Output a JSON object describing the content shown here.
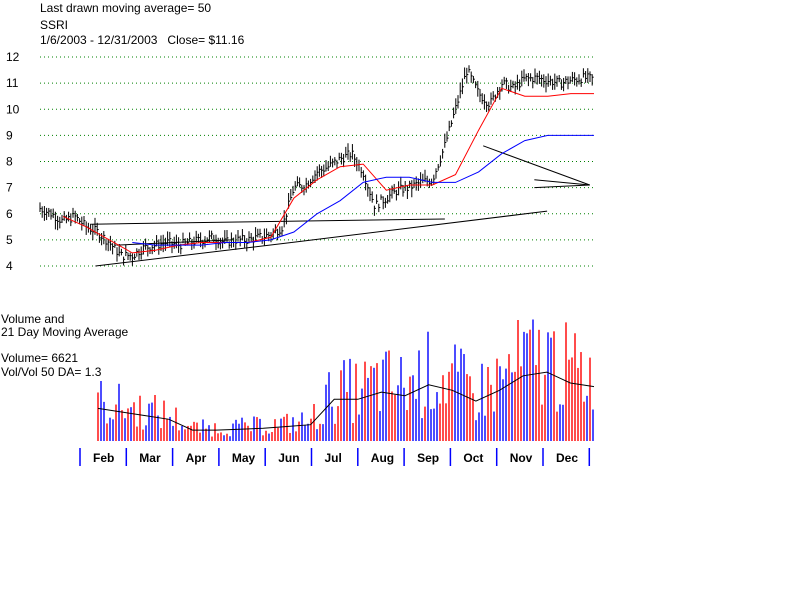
{
  "header": {
    "ma_line": "Last drawn moving average= 50",
    "symbol": "SSRI",
    "range_close": "1/6/2003 - 12/31/2003   Close= $11.16"
  },
  "volume_panel": {
    "title_line1": "Volume and",
    "title_line2": "21 Day Moving Average",
    "volume_line": "Volume= 6621",
    "ratio_line": "Vol/Vol 50 DA= 1.3"
  },
  "colors": {
    "price_bars": "#000000",
    "ma_short": "#ff0000",
    "ma_long": "#0000ff",
    "trendline": "#000000",
    "grid": "#008000",
    "volume_up": "#ff0000",
    "volume_down": "#0000ff",
    "volume_ma": "#000000"
  },
  "chart_data": {
    "type": "line",
    "ylim": [
      4,
      12
    ],
    "y_ticks": [
      "4",
      "5",
      "6",
      "7",
      "8",
      "9",
      "10",
      "11",
      "12"
    ],
    "months": [
      "Feb",
      "Mar",
      "Apr",
      "May",
      "Jun",
      "Jul",
      "Aug",
      "Sep",
      "Oct",
      "Nov",
      "Dec"
    ],
    "x_range": [
      0,
      12
    ],
    "grid": true,
    "series": [
      {
        "x": [
          0,
          0.25,
          0.5,
          0.75,
          1.0,
          1.25,
          1.5,
          1.75,
          2.0,
          2.25,
          2.5,
          2.75,
          3.0,
          3.25,
          3.5,
          3.75,
          4.0,
          4.25,
          4.5,
          4.75,
          5.0,
          5.25,
          5.5,
          5.75,
          6.0,
          6.25,
          6.5,
          6.75,
          7.0,
          7.25,
          7.5,
          7.75,
          8.0,
          8.25,
          8.5,
          8.75,
          9.0,
          9.25,
          9.5,
          9.75,
          10.0,
          10.25,
          10.5,
          10.75,
          11.0,
          11.25,
          11.5,
          11.75,
          12.0
        ],
        "values": [
          6.2,
          6.0,
          5.7,
          5.9,
          5.5,
          5.3,
          4.9,
          4.4,
          4.4,
          4.7,
          4.8,
          4.9,
          4.8,
          4.9,
          5.0,
          5.1,
          4.9,
          5.0,
          5.0,
          5.1,
          5.2,
          5.5,
          7.0,
          7.1,
          7.6,
          7.8,
          8.1,
          8.3,
          7.6,
          6.3,
          6.6,
          6.9,
          7.0,
          7.2,
          7.3,
          8.5,
          10.0,
          11.5,
          10.6,
          10.2,
          11.0,
          10.8,
          11.16,
          11.2,
          11.1,
          11.0,
          11.1,
          11.2,
          11.16
        ]
      },
      {
        "x": [
          0.5,
          1.0,
          1.5,
          2.0,
          2.5,
          3.0,
          3.5,
          4.0,
          4.5,
          5.0,
          5.5,
          6.0,
          6.5,
          7.0,
          7.5,
          8.0,
          8.5,
          9.0,
          9.5,
          10.0,
          10.5,
          11.0,
          11.5,
          12.0
        ],
        "values": [
          5.9,
          5.5,
          5.0,
          4.5,
          4.6,
          4.8,
          4.9,
          4.9,
          4.9,
          5.1,
          6.6,
          7.3,
          7.8,
          7.9,
          6.9,
          7.1,
          7.1,
          7.5,
          9.2,
          10.8,
          10.5,
          10.5,
          10.6,
          10.6
        ]
      },
      {
        "x": [
          2.0,
          2.5,
          3.0,
          3.5,
          4.0,
          4.5,
          5.0,
          5.5,
          6.0,
          6.5,
          7.0,
          7.5,
          8.0,
          8.5,
          9.0,
          9.5,
          10.0,
          10.5,
          11.0,
          11.5,
          12.0
        ],
        "values": [
          4.9,
          4.8,
          4.8,
          4.8,
          4.9,
          4.9,
          5.0,
          5.3,
          6.0,
          6.5,
          7.2,
          7.4,
          7.4,
          7.2,
          7.2,
          7.6,
          8.3,
          8.8,
          9.0,
          9.0,
          9.0
        ]
      }
    ],
    "volume": {
      "ma21": [
        1800,
        1600,
        1400,
        1200,
        600,
        600,
        650,
        700,
        800,
        900,
        2300,
        2300,
        2700,
        2500,
        3100,
        2800,
        2200,
        2800,
        3600,
        3800,
        3200,
        3000
      ]
    }
  }
}
